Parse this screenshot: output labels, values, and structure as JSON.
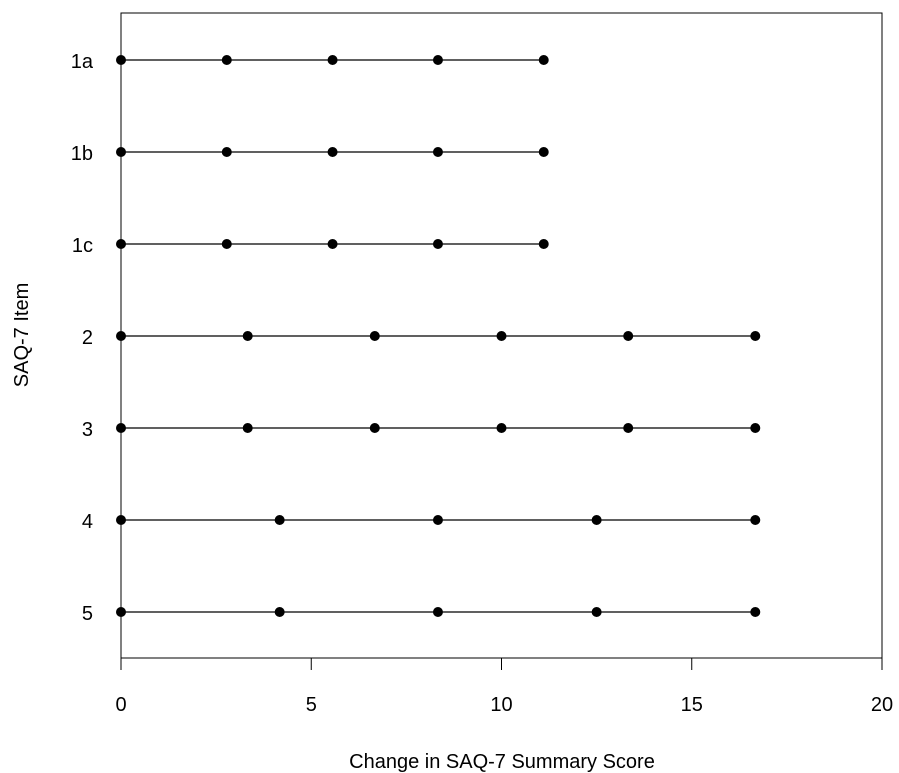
{
  "chart_data": {
    "type": "scatter",
    "title": "",
    "xlabel": "Change in SAQ-7 Summary Score",
    "ylabel": "SAQ-7 Item",
    "xlim": [
      0,
      20
    ],
    "x_ticks": [
      0,
      5,
      10,
      15,
      20
    ],
    "grid": false,
    "legend": "none",
    "colors": {
      "marker": "#000000",
      "line": "#000000"
    },
    "categories": [
      "1a",
      "1b",
      "1c",
      "2",
      "3",
      "4",
      "5"
    ],
    "series": [
      {
        "category": "1a",
        "x": [
          0,
          2.78,
          5.56,
          8.33,
          11.11
        ]
      },
      {
        "category": "1b",
        "x": [
          0,
          2.78,
          5.56,
          8.33,
          11.11
        ]
      },
      {
        "category": "1c",
        "x": [
          0,
          2.78,
          5.56,
          8.33,
          11.11
        ]
      },
      {
        "category": "2",
        "x": [
          0,
          3.33,
          6.67,
          10.0,
          13.33,
          16.67
        ]
      },
      {
        "category": "3",
        "x": [
          0,
          3.33,
          6.67,
          10.0,
          13.33,
          16.67
        ]
      },
      {
        "category": "4",
        "x": [
          0,
          4.17,
          8.33,
          12.5,
          16.67
        ]
      },
      {
        "category": "5",
        "x": [
          0,
          4.17,
          8.33,
          12.5,
          16.67
        ]
      }
    ]
  }
}
